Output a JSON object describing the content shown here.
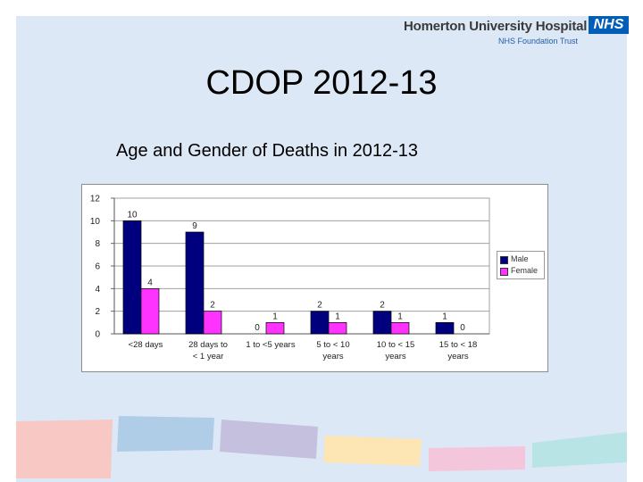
{
  "header": {
    "logo_main": "Homerton University Hospital",
    "logo_sub": "NHS Foundation Trust",
    "nhs_badge": "NHS"
  },
  "slide": {
    "title": "CDOP 2012-13",
    "subtitle": "Age and Gender of Deaths in 2012-13"
  },
  "colors": {
    "male": "#00007f",
    "female": "#ff33ff",
    "background": "#dde8f6"
  },
  "chart_data": {
    "type": "bar",
    "categories": [
      [
        "<28 days"
      ],
      [
        "28 days to",
        "< 1 year"
      ],
      [
        "1 to <5 years"
      ],
      [
        "5 to < 10",
        "years"
      ],
      [
        "10 to < 15",
        "years"
      ],
      [
        "15 to < 18",
        "years"
      ]
    ],
    "series": [
      {
        "name": "Male",
        "values": [
          10,
          9,
          0,
          2,
          2,
          1
        ]
      },
      {
        "name": "Female",
        "values": [
          4,
          2,
          1,
          1,
          1,
          0
        ]
      }
    ],
    "ylim": [
      0,
      12
    ],
    "yticks": [
      0,
      2,
      4,
      6,
      8,
      10,
      12
    ],
    "grid": true,
    "legend": "right"
  }
}
